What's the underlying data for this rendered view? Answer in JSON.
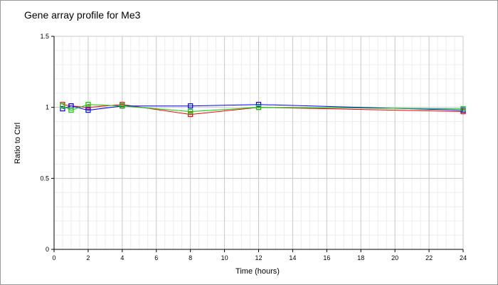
{
  "chart_data": {
    "type": "line",
    "title": "Gene array profile for Me3",
    "xlabel": "Time (hours)",
    "ylabel": "Ratio to Ctrl",
    "xlim": [
      0,
      24
    ],
    "ylim": [
      0,
      1.5
    ],
    "xticks": [
      0,
      2,
      4,
      6,
      8,
      10,
      12,
      14,
      16,
      18,
      20,
      22,
      24
    ],
    "yticks": [
      0,
      0.5,
      1,
      1.5
    ],
    "ytick_labels": [
      "0",
      "0.5",
      "1",
      "1.5"
    ],
    "grid": true,
    "minor_grid": true,
    "series": [
      {
        "color": "#ff0000",
        "marker": "square",
        "x": [
          0.5,
          1,
          2,
          4,
          8,
          12,
          24
        ],
        "y": [
          1.02,
          1.01,
          1.0,
          1.02,
          0.95,
          1.0,
          0.97
        ]
      },
      {
        "color": "#0000ff",
        "marker": "square",
        "x": [
          0.5,
          1,
          2,
          4,
          8,
          12,
          24
        ],
        "y": [
          0.99,
          1.01,
          0.98,
          1.01,
          1.01,
          1.02,
          0.98
        ]
      },
      {
        "color": "#00cc00",
        "marker": "square",
        "x": [
          0.5,
          1,
          2,
          4,
          8,
          12,
          24
        ],
        "y": [
          1.01,
          0.98,
          1.02,
          1.01,
          0.97,
          1.0,
          0.99
        ]
      }
    ]
  }
}
